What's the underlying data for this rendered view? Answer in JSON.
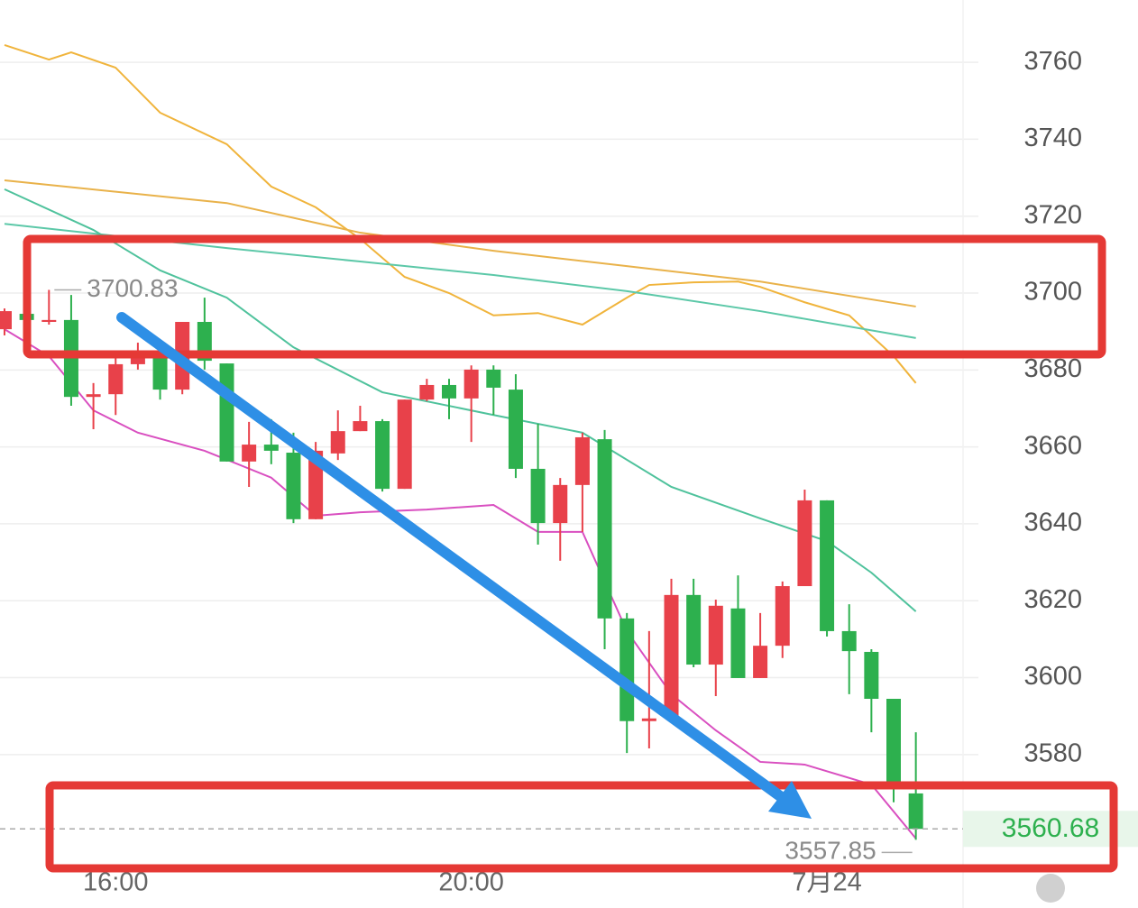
{
  "chart_data": {
    "type": "candlestick",
    "up_color": "#e8414a",
    "down_color": "#2db04e",
    "open": [
      3690.6,
      3694.6,
      3692.5,
      3693.0,
      3673.0,
      3673.7,
      3681.5,
      3684.8,
      3674.9,
      3692.5,
      3681.7,
      3656.2,
      3660.6,
      3658.5,
      3641.2,
      3658.3,
      3664.1,
      3666.7,
      3649.1,
      3672.3,
      3676.1,
      3672.6,
      3680.1,
      3674.9,
      3654.3,
      3640.2,
      3650.1,
      3662.0,
      3615.4,
      3588.7,
      3589.4,
      3621.5,
      3603.4,
      3618.0,
      3599.9,
      3608.3,
      3623.8,
      3646.1,
      3612.1,
      3606.7,
      3594.5,
      3569.9
    ],
    "high": [
      3696.0,
      3695.0,
      3700.83,
      3699.5,
      3676.6,
      3683.6,
      3687.1,
      3687.1,
      3692.5,
      3698.8,
      3681.7,
      3666.5,
      3667.2,
      3663.7,
      3661.3,
      3669.5,
      3670.7,
      3667.2,
      3672.3,
      3677.7,
      3677.7,
      3681.2,
      3681.2,
      3678.9,
      3666.0,
      3651.9,
      3663.7,
      3664.4,
      3616.8,
      3612.1,
      3625.7,
      3625.7,
      3620.3,
      3626.6,
      3616.8,
      3625.0,
      3648.9,
      3646.1,
      3619.1,
      3607.4,
      3594.5,
      3585.8
    ],
    "low": [
      3689.0,
      3692.5,
      3691.8,
      3670.7,
      3664.6,
      3668.3,
      3680.1,
      3672.3,
      3673.7,
      3680.1,
      3656.2,
      3649.6,
      3655.5,
      3640.2,
      3641.2,
      3656.6,
      3664.1,
      3648.4,
      3649.1,
      3671.9,
      3667.2,
      3661.3,
      3668.3,
      3651.9,
      3634.6,
      3630.4,
      3637.9,
      3607.4,
      3580.4,
      3581.6,
      3588.7,
      3602.7,
      3595.2,
      3599.9,
      3599.9,
      3605.1,
      3623.8,
      3610.7,
      3595.7,
      3585.8,
      3567.6,
      3557.85
    ],
    "close": [
      3695.3,
      3693.0,
      3693.0,
      3673.0,
      3673.7,
      3681.5,
      3683.6,
      3674.9,
      3692.5,
      3682.4,
      3656.2,
      3660.6,
      3659.0,
      3641.2,
      3659.0,
      3664.1,
      3666.7,
      3649.1,
      3672.3,
      3676.1,
      3672.6,
      3680.1,
      3675.4,
      3654.3,
      3640.2,
      3650.1,
      3662.5,
      3615.4,
      3588.7,
      3589.4,
      3621.5,
      3603.4,
      3618.7,
      3599.9,
      3608.3,
      3623.8,
      3646.1,
      3612.1,
      3606.9,
      3594.5,
      3572.2,
      3560.68
    ],
    "lines": [
      {
        "color": "#f0b43c",
        "x": [
          0,
          2,
          3,
          5,
          7,
          10,
          12,
          14,
          16,
          18,
          20,
          22,
          24,
          26,
          28,
          29,
          31,
          33,
          34,
          36,
          38,
          40,
          41
        ],
        "values": [
          3764.5,
          3760.7,
          3762.6,
          3758.6,
          3746.9,
          3738.7,
          3727.7,
          3722.3,
          3714.1,
          3704.2,
          3700.0,
          3694.2,
          3694.8,
          3691.8,
          3698.8,
          3702.1,
          3702.8,
          3703.0,
          3701.6,
          3697.6,
          3694.2,
          3683.6,
          3676.6
        ]
      },
      {
        "color": "#e9b24a",
        "x": [
          0,
          10,
          16,
          22,
          28,
          34,
          41
        ],
        "values": [
          3729.3,
          3723.4,
          3715.7,
          3711.0,
          3707.0,
          3703.0,
          3696.5
        ]
      },
      {
        "color": "#5cc8a8",
        "x": [
          0,
          10,
          16,
          22,
          28,
          34,
          41
        ],
        "values": [
          3718.0,
          3711.7,
          3708.2,
          3704.7,
          3700.5,
          3695.3,
          3688.3
        ]
      },
      {
        "color": "#4fc29c",
        "x": [
          0,
          4,
          7,
          10,
          13,
          17,
          22,
          26,
          30,
          34,
          37,
          39,
          41
        ],
        "values": [
          3727.0,
          3716.4,
          3705.9,
          3698.8,
          3685.9,
          3674.2,
          3668.3,
          3663.7,
          3649.6,
          3641.4,
          3635.5,
          3627.3,
          3617.2
        ]
      },
      {
        "color": "#d94fc0",
        "x": [
          0,
          2,
          4,
          6,
          9,
          12,
          14,
          16,
          19,
          22,
          24,
          26,
          28,
          30,
          32,
          34,
          36,
          39,
          41
        ],
        "values": [
          3690.6,
          3683.6,
          3669.5,
          3663.7,
          3659.0,
          3652.0,
          3642.1,
          3643.0,
          3643.7,
          3644.9,
          3637.9,
          3637.9,
          3612.1,
          3595.7,
          3586.3,
          3578.1,
          3577.4,
          3572.2,
          3558.2
        ]
      }
    ],
    "ylim": [
      3552.3,
      3776.2
    ],
    "yticks": [
      3580,
      3600,
      3620,
      3640,
      3660,
      3680,
      3700,
      3720,
      3740,
      3760
    ],
    "xticks": [
      {
        "value": 5,
        "label": "16:00"
      },
      {
        "value": 21,
        "label": "20:00"
      },
      {
        "value": 37,
        "label": "7月24"
      }
    ],
    "grid": true
  }
}
